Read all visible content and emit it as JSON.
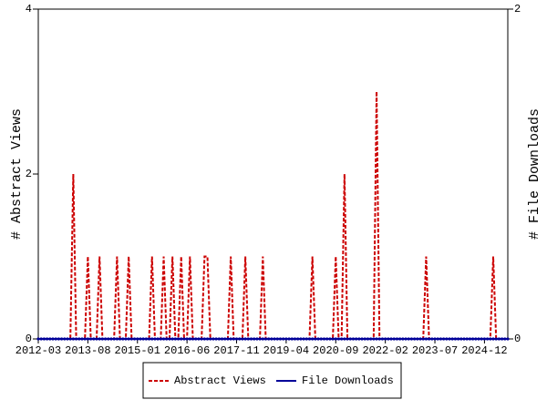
{
  "chart_data": {
    "type": "line",
    "x": [
      "2012-03",
      "2012-04",
      "2012-05",
      "2012-06",
      "2012-07",
      "2012-08",
      "2012-09",
      "2012-10",
      "2012-11",
      "2012-12",
      "2013-01",
      "2013-02",
      "2013-03",
      "2013-04",
      "2013-05",
      "2013-06",
      "2013-07",
      "2013-08",
      "2013-09",
      "2013-10",
      "2013-11",
      "2013-12",
      "2014-01",
      "2014-02",
      "2014-03",
      "2014-04",
      "2014-05",
      "2014-06",
      "2014-07",
      "2014-08",
      "2014-09",
      "2014-10",
      "2014-11",
      "2014-12",
      "2015-01",
      "2015-02",
      "2015-03",
      "2015-04",
      "2015-05",
      "2015-06",
      "2015-07",
      "2015-08",
      "2015-09",
      "2015-10",
      "2015-11",
      "2015-12",
      "2016-01",
      "2016-02",
      "2016-03",
      "2016-04",
      "2016-05",
      "2016-06",
      "2016-07",
      "2016-08",
      "2016-09",
      "2016-10",
      "2016-11",
      "2016-12",
      "2017-01",
      "2017-02",
      "2017-03",
      "2017-04",
      "2017-05",
      "2017-06",
      "2017-07",
      "2017-08",
      "2017-09",
      "2017-10",
      "2017-11",
      "2017-12",
      "2018-01",
      "2018-02",
      "2018-03",
      "2018-04",
      "2018-05",
      "2018-06",
      "2018-07",
      "2018-08",
      "2018-09",
      "2018-10",
      "2018-11",
      "2018-12",
      "2019-01",
      "2019-02",
      "2019-03",
      "2019-04",
      "2019-05",
      "2019-06",
      "2019-07",
      "2019-08",
      "2019-09",
      "2019-10",
      "2019-11",
      "2019-12",
      "2020-01",
      "2020-02",
      "2020-03",
      "2020-04",
      "2020-05",
      "2020-06",
      "2020-07",
      "2020-08",
      "2020-09",
      "2020-10",
      "2020-11",
      "2020-12",
      "2021-01",
      "2021-02",
      "2021-03",
      "2021-04",
      "2021-05",
      "2021-06",
      "2021-07",
      "2021-08",
      "2021-09",
      "2021-10",
      "2021-11",
      "2021-12",
      "2022-01",
      "2022-02",
      "2022-03",
      "2022-04",
      "2022-05",
      "2022-06",
      "2022-07",
      "2022-08",
      "2022-09",
      "2022-10",
      "2022-11",
      "2022-12",
      "2023-01",
      "2023-02",
      "2023-03",
      "2023-04",
      "2023-05",
      "2023-06",
      "2023-07",
      "2023-08",
      "2023-09",
      "2023-10",
      "2023-11",
      "2023-12",
      "2024-01",
      "2024-02",
      "2024-03",
      "2024-04",
      "2024-05",
      "2024-06",
      "2024-07",
      "2024-08",
      "2024-09",
      "2024-10",
      "2024-11",
      "2024-12",
      "2025-01",
      "2025-02",
      "2025-03",
      "2025-04",
      "2025-05",
      "2025-06",
      "2025-07",
      "2025-08"
    ],
    "xticks": [
      "2012-03",
      "2013-08",
      "2015-01",
      "2016-06",
      "2017-11",
      "2019-04",
      "2020-09",
      "2022-02",
      "2023-07",
      "2024-12"
    ],
    "series": [
      {
        "name": "Abstract Views",
        "color": "#cc0000",
        "axis": "y",
        "dashed": true,
        "values": [
          0,
          0,
          0,
          0,
          0,
          0,
          0,
          0,
          0,
          0,
          0,
          0,
          2,
          0,
          0,
          0,
          0,
          1,
          0,
          0,
          0,
          1,
          0,
          0,
          0,
          0,
          0,
          1,
          0,
          0,
          0,
          1,
          0,
          0,
          0,
          0,
          0,
          0,
          0,
          1,
          0,
          0,
          0,
          1,
          0,
          0,
          1,
          0,
          0,
          1,
          0,
          0,
          1,
          0,
          0,
          0,
          0,
          1,
          1,
          0,
          0,
          0,
          0,
          0,
          0,
          0,
          1,
          0,
          0,
          0,
          0,
          1,
          0,
          0,
          0,
          0,
          0,
          1,
          0,
          0,
          0,
          0,
          0,
          0,
          0,
          0,
          0,
          0,
          0,
          0,
          0,
          0,
          0,
          0,
          1,
          0,
          0,
          0,
          0,
          0,
          0,
          0,
          1,
          0,
          0,
          2,
          0,
          0,
          0,
          0,
          0,
          0,
          0,
          0,
          0,
          0,
          3,
          0,
          0,
          0,
          0,
          0,
          0,
          0,
          0,
          0,
          0,
          0,
          0,
          0,
          0,
          0,
          0,
          1,
          0,
          0,
          0,
          0,
          0,
          0,
          0,
          0,
          0,
          0,
          0,
          0,
          0,
          0,
          0,
          0,
          0,
          0,
          0,
          0,
          0,
          0,
          1,
          0,
          0,
          0,
          0,
          0
        ]
      },
      {
        "name": "File Downloads",
        "color": "#000099",
        "axis": "y2",
        "dashed": false,
        "values": [
          0,
          0,
          0,
          0,
          0,
          0,
          0,
          0,
          0,
          0,
          0,
          0,
          0,
          0,
          0,
          0,
          0,
          0,
          0,
          0,
          0,
          0,
          0,
          0,
          0,
          0,
          0,
          0,
          0,
          0,
          0,
          0,
          0,
          0,
          0,
          0,
          0,
          0,
          0,
          0,
          0,
          0,
          0,
          0,
          0,
          0,
          0,
          0,
          0,
          0,
          0,
          0,
          0,
          0,
          0,
          0,
          0,
          0,
          0,
          0,
          0,
          0,
          0,
          0,
          0,
          0,
          0,
          0,
          0,
          0,
          0,
          0,
          0,
          0,
          0,
          0,
          0,
          0,
          0,
          0,
          0,
          0,
          0,
          0,
          0,
          0,
          0,
          0,
          0,
          0,
          0,
          0,
          0,
          0,
          0,
          0,
          0,
          0,
          0,
          0,
          0,
          0,
          0,
          0,
          0,
          0,
          0,
          0,
          0,
          0,
          0,
          0,
          0,
          0,
          0,
          0,
          0,
          0,
          0,
          0,
          0,
          0,
          0,
          0,
          0,
          0,
          0,
          0,
          0,
          0,
          0,
          0,
          0,
          0,
          0,
          0,
          0,
          0,
          0,
          0,
          0,
          0,
          0,
          0,
          0,
          0,
          0,
          0,
          0,
          0,
          0,
          0,
          0,
          0,
          0,
          0,
          0,
          0,
          0,
          0,
          0,
          0
        ]
      }
    ],
    "ylabel": "# Abstract Views",
    "y2label": "# File Downloads",
    "ylim": [
      0,
      4
    ],
    "yticks": [
      0,
      2,
      4
    ],
    "y2lim": [
      0,
      2
    ],
    "y2ticks": [
      0,
      2
    ],
    "legend": "bottom"
  }
}
